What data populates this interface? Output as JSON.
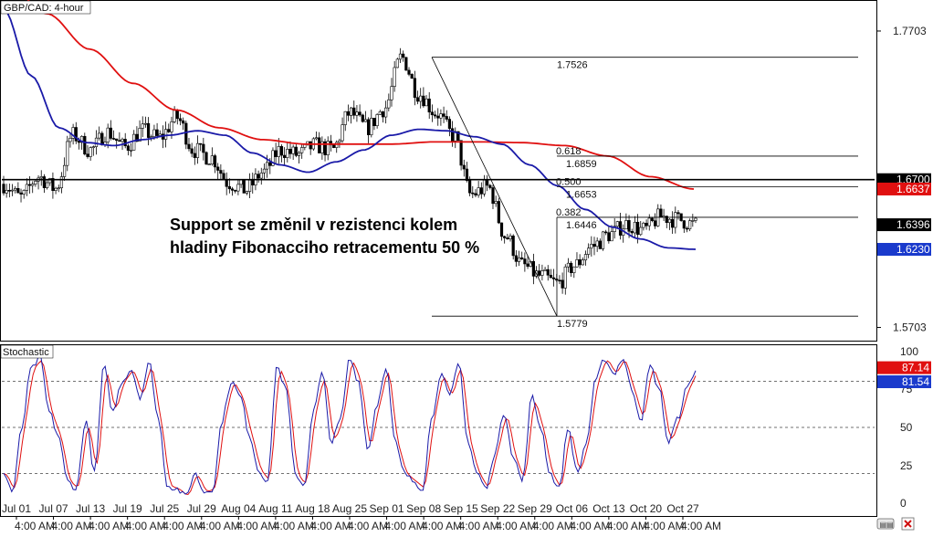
{
  "window": {
    "symbol_title": "GBP/CAD: 4-hour",
    "indicator_title": "Stochastic"
  },
  "annotation": {
    "line1": "Support se změnil v rezistenci kolem",
    "line2": "hladiny Fibonacciho retracementu 50 %"
  },
  "colors": {
    "ma_fast": "#1a1aa8",
    "ma_slow": "#e01010",
    "candle": "#000000",
    "stoch_k": "#1a1aa8",
    "stoch_d": "#e01010",
    "label_black": "#000000",
    "label_red": "#e01010",
    "label_blue": "#1a3acc",
    "grid": "#e0e0e0"
  },
  "chart_data": [
    {
      "type": "candlestick",
      "title": "GBP/CAD: 4-hour",
      "x_tick_labels": [
        "Jul 01",
        "Jul 07",
        "Jul 13",
        "Jul 19",
        "Jul 25",
        "Jul 29",
        "Aug 04",
        "Aug 11",
        "Aug 18",
        "Aug 25",
        "Sep 01",
        "Sep 08",
        "Sep 15",
        "Sep 22",
        "Sep 29",
        "Oct 06",
        "Oct 13",
        "Oct 20",
        "Oct 27"
      ],
      "x_tick_time": "4:00 AM",
      "y_tick_labels": [
        "1.7703",
        "1.5703"
      ],
      "ylim": [
        1.562,
        1.79
      ],
      "price_path": [
        1.667,
        1.658,
        1.672,
        1.664,
        1.7,
        1.69,
        1.702,
        1.692,
        1.703,
        1.698,
        1.712,
        1.69,
        1.685,
        1.668,
        1.663,
        1.675,
        1.69,
        1.687,
        1.693,
        1.69,
        1.715,
        1.705,
        1.718,
        1.7526,
        1.728,
        1.715,
        1.7,
        1.66,
        1.665,
        1.632,
        1.612,
        1.605,
        1.6,
        1.612,
        1.625,
        1.633,
        1.64,
        1.636,
        1.645,
        1.643,
        1.6396
      ],
      "moving_average_fast": {
        "color": "#1a1aa8",
        "path": [
          1.785,
          1.74,
          1.705,
          1.695,
          1.693,
          1.697,
          1.7,
          1.703,
          1.7,
          1.688,
          1.68,
          1.675,
          1.682,
          1.69,
          1.7,
          1.704,
          1.703,
          1.699,
          1.694,
          1.68,
          1.666,
          1.65,
          1.638,
          1.63,
          1.624,
          1.623
        ],
        "last_value": 1.623
      },
      "moving_average_slow": {
        "color": "#e01010",
        "path": [
          1.805,
          1.782,
          1.758,
          1.735,
          1.717,
          1.705,
          1.697,
          1.694,
          1.694,
          1.694,
          1.6955,
          1.6955,
          1.695,
          1.693,
          1.686,
          1.672,
          1.6637
        ],
        "last_value": 1.6637
      },
      "horizontal_line": {
        "value": 1.67,
        "label": "1.6700"
      },
      "fibonacci": {
        "high": {
          "value": 1.7526,
          "label": "1.7526"
        },
        "low": {
          "value": 1.5779,
          "label": "1.5779"
        },
        "levels": [
          {
            "value": 1.6859,
            "label": "1.6859",
            "ratio_label": "0.618"
          },
          {
            "value": 1.6653,
            "label": "1.6653",
            "ratio_label": "0.500"
          },
          {
            "value": 1.6446,
            "label": "1.6446",
            "ratio_label": "0.382"
          }
        ]
      },
      "price_labels": [
        {
          "value": 1.67,
          "label": "1.6700",
          "color": "#000000"
        },
        {
          "value": 1.6637,
          "label": "1.6637",
          "color": "#e01010"
        },
        {
          "value": 1.6396,
          "label": "1.6396",
          "color": "#000000"
        },
        {
          "value": 1.623,
          "label": "1.6230",
          "color": "#1a3acc"
        }
      ]
    },
    {
      "type": "line",
      "title": "Stochastic",
      "ylim": [
        0,
        100
      ],
      "y_tick_labels": [
        "100",
        "75",
        "50",
        "25",
        "0"
      ],
      "levels": [
        80,
        50,
        20
      ],
      "k_path": [
        20,
        8,
        50,
        88,
        95,
        60,
        45,
        15,
        10,
        55,
        20,
        90,
        60,
        80,
        88,
        70,
        92,
        55,
        12,
        10,
        5,
        20,
        8,
        10,
        55,
        80,
        70,
        45,
        22,
        15,
        90,
        75,
        20,
        12,
        60,
        85,
        40,
        55,
        95,
        80,
        35,
        65,
        90,
        40,
        20,
        15,
        10,
        55,
        85,
        70,
        92,
        40,
        20,
        10,
        35,
        60,
        30,
        15,
        70,
        50,
        20,
        10,
        50,
        20,
        40,
        80,
        95,
        85,
        95,
        75,
        55,
        90,
        75,
        40,
        55,
        75,
        87
      ],
      "last_value_red": 87.14,
      "last_value_blue": 81.54,
      "value_labels": [
        "87.14",
        "81.54"
      ]
    }
  ]
}
